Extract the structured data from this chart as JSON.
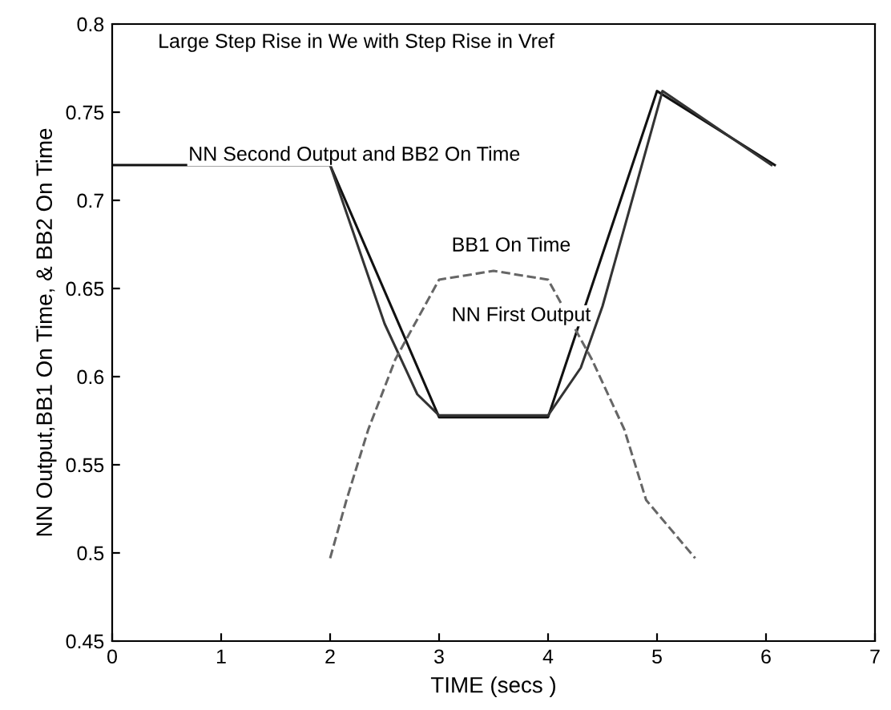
{
  "chart_data": {
    "type": "line",
    "title": "Large Step Rise in We with Step Rise in Vref",
    "xlabel": "TIME (secs )",
    "ylabel": "NN Output,BB1 On Time, & BB2 On Time",
    "series": [
      {
        "color": "#111111",
        "line_style": "solid",
        "x": [
          0,
          2,
          3,
          4,
          5,
          6.08
        ],
        "values": [
          0.72,
          0.72,
          0.577,
          0.577,
          0.762,
          0.72
        ]
      },
      {
        "color": "#333333",
        "line_style": "solid",
        "x": [
          2,
          2.5,
          2.8,
          3,
          4,
          4.3,
          4.5,
          5.05,
          6.05
        ],
        "values": [
          0.72,
          0.63,
          0.59,
          0.578,
          0.578,
          0.605,
          0.64,
          0.762,
          0.72
        ]
      },
      {
        "color": "#666666",
        "line_style": "dashed",
        "x": [
          2,
          2.15,
          2.35,
          2.6,
          3,
          3.5,
          4,
          4.4,
          4.7,
          4.9,
          5.35
        ],
        "values": [
          0.497,
          0.53,
          0.57,
          0.61,
          0.655,
          0.66,
          0.655,
          0.61,
          0.57,
          0.53,
          0.497
        ]
      }
    ],
    "annotations": [
      "NN Second Output and BB2 On Time",
      "BB1 On Time",
      "NN First Output"
    ],
    "xlim": [
      0,
      7
    ],
    "ylim": [
      0.45,
      0.8
    ],
    "xticks": [
      0,
      1,
      2,
      3,
      4,
      5,
      6,
      7
    ],
    "yticks": [
      0.45,
      0.5,
      0.55,
      0.6,
      0.65,
      0.7,
      0.75,
      0.8
    ],
    "grid": false,
    "legend": false
  }
}
